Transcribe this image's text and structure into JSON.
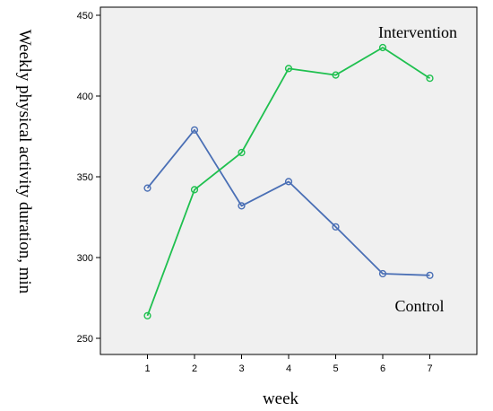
{
  "chart_data": {
    "type": "line",
    "title": "",
    "xlabel": "week",
    "ylabel": "Weekly physical activity duration, min",
    "x": [
      1,
      2,
      3,
      4,
      5,
      6,
      7
    ],
    "xlim": [
      0,
      8
    ],
    "ylim": [
      240,
      455
    ],
    "yticks": [
      250,
      300,
      350,
      400,
      450
    ],
    "grid": false,
    "legend": "none",
    "plot_background": "#f0f0f0",
    "series": [
      {
        "name": "Control",
        "color": "#4a6fb5",
        "values": [
          343,
          379,
          332,
          347,
          319,
          290,
          289
        ]
      },
      {
        "name": "Intervention",
        "color": "#1fc04f",
        "values": [
          264,
          342,
          365,
          417,
          413,
          430,
          411
        ]
      }
    ],
    "annotations": [
      {
        "text": "Intervention",
        "series": "Intervention"
      },
      {
        "text": "Control",
        "series": "Control"
      }
    ]
  }
}
